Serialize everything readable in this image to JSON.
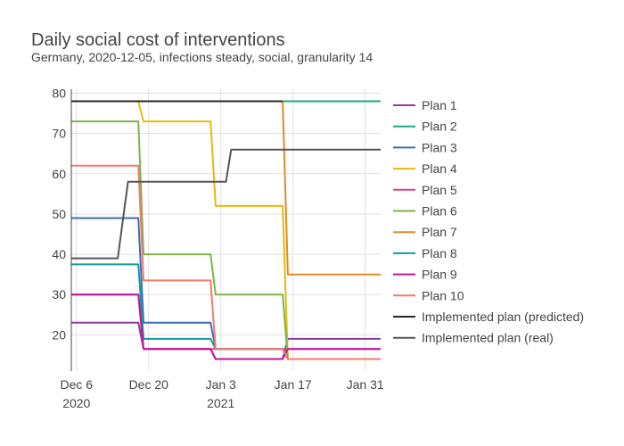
{
  "chart_data": {
    "type": "line",
    "title": "Daily social cost of interventions",
    "subtitle": "Germany, 2020-12-05, infections steady, social, granularity 14",
    "xlabel": "",
    "ylabel": "",
    "x_range": [
      "2020-12-05",
      "2021-02-03"
    ],
    "ylim": [
      11,
      81
    ],
    "y_ticks": [
      20,
      30,
      40,
      50,
      60,
      70,
      80
    ],
    "x_ticks": [
      {
        "date": "2020-12-06",
        "label": "Dec 6",
        "sublabel": "2020"
      },
      {
        "date": "2020-12-20",
        "label": "Dec 20",
        "sublabel": ""
      },
      {
        "date": "2021-01-03",
        "label": "Jan 3",
        "sublabel": "2021"
      },
      {
        "date": "2021-01-17",
        "label": "Jan 17",
        "sublabel": ""
      },
      {
        "date": "2021-01-31",
        "label": "Jan 31",
        "sublabel": ""
      }
    ],
    "grid": true,
    "legend_position": "right",
    "series": [
      {
        "name": "Plan 1",
        "color": "#8e3c97",
        "points": [
          [
            "2020-12-05",
            23
          ],
          [
            "2020-12-18",
            23
          ],
          [
            "2020-12-19",
            16.5
          ],
          [
            "2021-01-01",
            16.5
          ],
          [
            "2021-01-02",
            14
          ],
          [
            "2021-01-15",
            14
          ],
          [
            "2021-01-16",
            19
          ],
          [
            "2021-02-03",
            19
          ]
        ]
      },
      {
        "name": "Plan 2",
        "color": "#1aa882",
        "points": [
          [
            "2020-12-05",
            78
          ],
          [
            "2021-02-03",
            78
          ]
        ]
      },
      {
        "name": "Plan 3",
        "color": "#3a6db5",
        "points": [
          [
            "2020-12-05",
            49
          ],
          [
            "2020-12-18",
            49
          ],
          [
            "2020-12-19",
            23
          ],
          [
            "2021-01-01",
            23
          ],
          [
            "2021-01-02",
            16.5
          ],
          [
            "2021-01-15",
            16.5
          ],
          [
            "2021-01-16",
            14
          ],
          [
            "2021-02-03",
            14
          ]
        ]
      },
      {
        "name": "Plan 4",
        "color": "#e6b90d",
        "points": [
          [
            "2020-12-05",
            78
          ],
          [
            "2020-12-18",
            78
          ],
          [
            "2020-12-19",
            73
          ],
          [
            "2021-01-01",
            73
          ],
          [
            "2021-01-02",
            52
          ],
          [
            "2021-01-15",
            52
          ],
          [
            "2021-01-16",
            14
          ],
          [
            "2021-02-03",
            14
          ]
        ]
      },
      {
        "name": "Plan 5",
        "color": "#d6457e",
        "points": [
          [
            "2020-12-05",
            30
          ],
          [
            "2020-12-18",
            30
          ],
          [
            "2020-12-19",
            16.5
          ],
          [
            "2021-02-03",
            16.5
          ]
        ]
      },
      {
        "name": "Plan 6",
        "color": "#7ab648",
        "points": [
          [
            "2020-12-05",
            73
          ],
          [
            "2020-12-18",
            73
          ],
          [
            "2020-12-19",
            40
          ],
          [
            "2021-01-01",
            40
          ],
          [
            "2021-01-02",
            30
          ],
          [
            "2021-01-15",
            30
          ],
          [
            "2021-01-16",
            14
          ],
          [
            "2021-02-03",
            14
          ]
        ]
      },
      {
        "name": "Plan 7",
        "color": "#e58a1f",
        "points": [
          [
            "2020-12-05",
            78
          ],
          [
            "2021-01-15",
            78
          ],
          [
            "2021-01-16",
            35
          ],
          [
            "2021-02-03",
            35
          ]
        ]
      },
      {
        "name": "Plan 8",
        "color": "#139a9a",
        "points": [
          [
            "2020-12-05",
            37.5
          ],
          [
            "2020-12-18",
            37.5
          ],
          [
            "2020-12-19",
            19
          ],
          [
            "2021-01-01",
            19
          ],
          [
            "2021-01-02",
            16.5
          ],
          [
            "2021-01-15",
            16.5
          ],
          [
            "2021-01-16",
            14
          ],
          [
            "2021-02-03",
            14
          ]
        ]
      },
      {
        "name": "Plan 9",
        "color": "#c0169a",
        "points": [
          [
            "2020-12-05",
            30
          ],
          [
            "2020-12-18",
            30
          ],
          [
            "2020-12-19",
            16.5
          ],
          [
            "2021-01-01",
            16.5
          ],
          [
            "2021-01-02",
            14
          ],
          [
            "2021-01-15",
            14
          ],
          [
            "2021-01-16",
            16.5
          ],
          [
            "2021-02-03",
            16.5
          ]
        ]
      },
      {
        "name": "Plan 10",
        "color": "#f47a6c",
        "points": [
          [
            "2020-12-05",
            62
          ],
          [
            "2020-12-18",
            62
          ],
          [
            "2020-12-19",
            33.5
          ],
          [
            "2021-01-01",
            33.5
          ],
          [
            "2021-01-02",
            16.5
          ],
          [
            "2021-01-15",
            16.5
          ],
          [
            "2021-01-16",
            14
          ],
          [
            "2021-02-03",
            14
          ]
        ]
      },
      {
        "name": "Implemented plan (predicted)",
        "color": "#262626",
        "points": [
          [
            "2020-12-05",
            78
          ],
          [
            "2021-01-15",
            78
          ]
        ]
      },
      {
        "name": "Implemented plan (real)",
        "color": "#555555",
        "points": [
          [
            "2020-12-05",
            39
          ],
          [
            "2020-12-14",
            39
          ],
          [
            "2020-12-16",
            58
          ],
          [
            "2021-01-04",
            58
          ],
          [
            "2021-01-05",
            66
          ],
          [
            "2021-02-03",
            66
          ]
        ]
      }
    ]
  }
}
